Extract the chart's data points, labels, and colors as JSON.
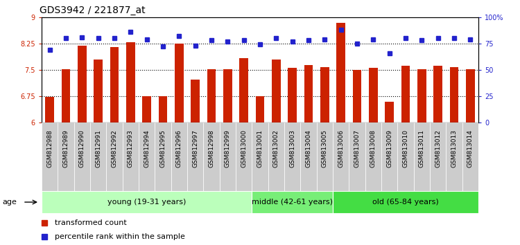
{
  "title": "GDS3942 / 221877_at",
  "samples": [
    "GSM812988",
    "GSM812989",
    "GSM812990",
    "GSM812991",
    "GSM812992",
    "GSM812993",
    "GSM812994",
    "GSM812995",
    "GSM812996",
    "GSM812997",
    "GSM812998",
    "GSM812999",
    "GSM813000",
    "GSM813001",
    "GSM813002",
    "GSM813003",
    "GSM813004",
    "GSM813005",
    "GSM813006",
    "GSM813007",
    "GSM813008",
    "GSM813009",
    "GSM813010",
    "GSM813011",
    "GSM813012",
    "GSM813013",
    "GSM813014"
  ],
  "bar_values": [
    6.72,
    7.52,
    8.19,
    7.8,
    8.14,
    8.29,
    6.75,
    6.75,
    8.25,
    7.23,
    7.52,
    7.52,
    7.83,
    6.74,
    7.8,
    7.56,
    7.63,
    7.57,
    8.84,
    7.49,
    7.56,
    6.6,
    7.62,
    7.52,
    7.62,
    7.57,
    7.52
  ],
  "dot_values": [
    69,
    80,
    81,
    80,
    80,
    86,
    79,
    72,
    82,
    73,
    78,
    77,
    78,
    74,
    80,
    77,
    78,
    79,
    88,
    75,
    79,
    66,
    80,
    78,
    80,
    80,
    79
  ],
  "ylim": [
    6.0,
    9.0
  ],
  "y2lim": [
    0,
    100
  ],
  "yticks": [
    6.0,
    6.75,
    7.5,
    8.25,
    9.0
  ],
  "y2ticks": [
    0,
    25,
    50,
    75,
    100
  ],
  "y2ticklabels": [
    "0",
    "25",
    "50",
    "75",
    "100%"
  ],
  "bar_color": "#CC2200",
  "dot_color": "#2222CC",
  "group_labels": [
    "young (19-31 years)",
    "middle (42-61 years)",
    "old (65-84 years)"
  ],
  "group_starts": [
    0,
    13,
    18
  ],
  "group_ends": [
    13,
    18,
    27
  ],
  "group_colors": [
    "#BBFFBB",
    "#77EE77",
    "#44DD44"
  ],
  "age_label": "age",
  "legend_bar": "transformed count",
  "legend_dot": "percentile rank within the sample",
  "grid_yticks": [
    6.75,
    7.5,
    8.25
  ],
  "bar_width": 0.55,
  "title_fontsize": 10,
  "tick_fontsize": 7,
  "label_fontsize": 8,
  "group_fontsize": 8
}
